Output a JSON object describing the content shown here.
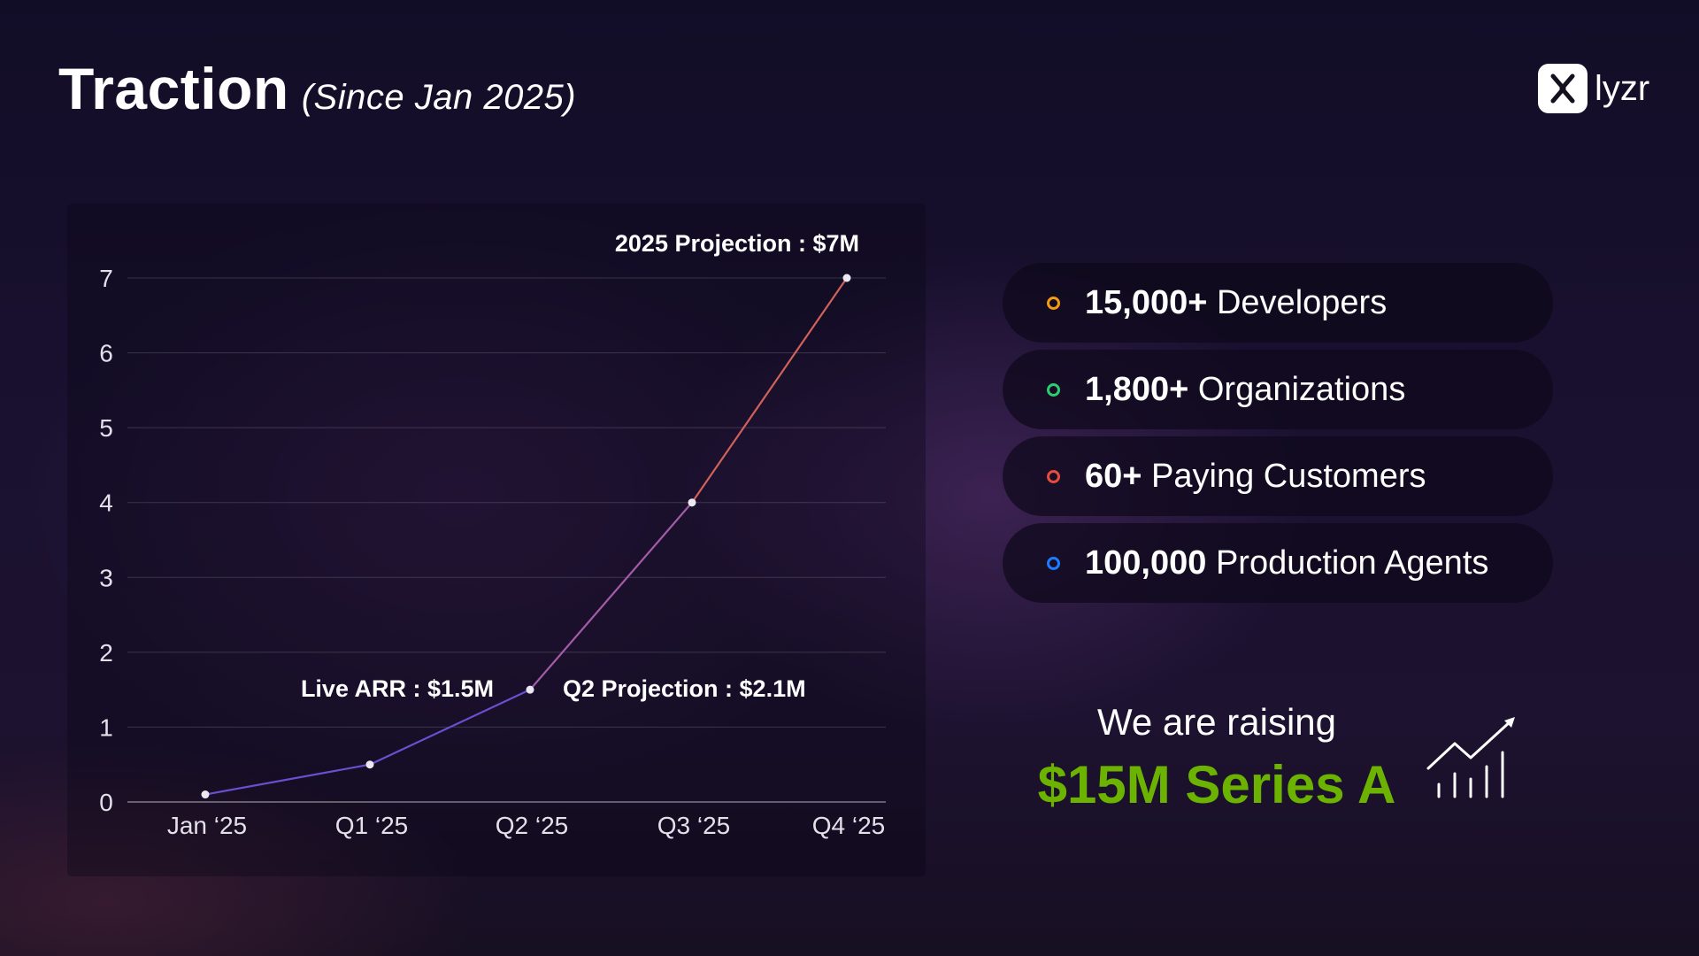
{
  "header": {
    "title": "Traction",
    "subtitle": "(Since Jan 2025)"
  },
  "logo": {
    "text": "lyzr",
    "icon": "lyzr-logo-icon"
  },
  "chart_data": {
    "type": "line",
    "categories": [
      "Jan ‘25",
      "Q1 ‘25",
      "Q2 ‘25",
      "Q3 ‘25",
      "Q4 ‘25"
    ],
    "values": [
      0.1,
      0.5,
      1.5,
      4,
      7
    ],
    "ylim": [
      0,
      7
    ],
    "yticks": [
      0,
      1,
      2,
      3,
      4,
      5,
      6,
      7
    ],
    "grid": true,
    "annotations": [
      {
        "text": "2025 Projection : $7M",
        "point": 4
      },
      {
        "text": "Live ARR : $1.5M",
        "point": 2
      },
      {
        "text": "Q2 Projection : $2.1M",
        "point": 2
      }
    ],
    "line_colors": [
      "#6a4fd0",
      "#a35ca8",
      "#d0625a"
    ]
  },
  "metrics": [
    {
      "value": "15,000+",
      "label": "Developers",
      "color": "#f39c12"
    },
    {
      "value": "1,800+",
      "label": "Organizations",
      "color": "#2ecc71"
    },
    {
      "value": "60+",
      "label": "Paying Customers",
      "color": "#e74c3c"
    },
    {
      "value": "100,000",
      "label": "Production Agents",
      "color": "#1e7bff"
    }
  ],
  "raise": {
    "line1": "We are raising",
    "line2": "$15M Series A",
    "accent_color": "#6bb300",
    "icon": "growth-chart-icon"
  }
}
